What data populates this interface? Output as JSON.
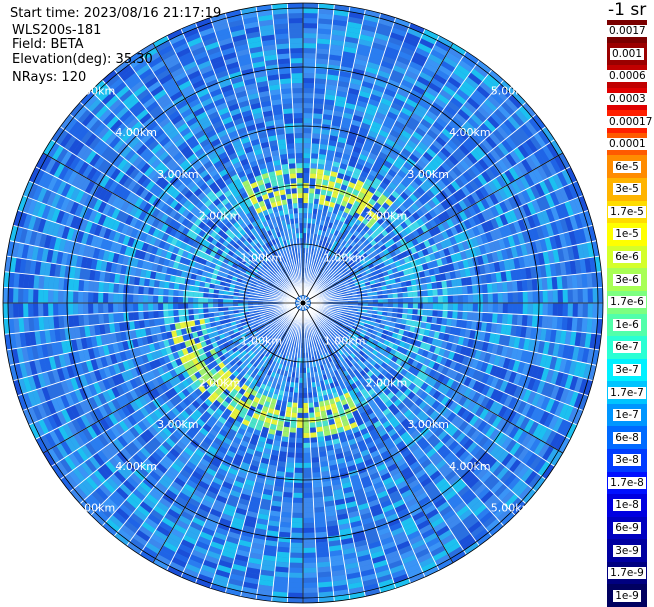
{
  "info": {
    "start_time": "Start time: 2023/08/16 21:17:19",
    "instrument": "WLS200s-181",
    "field": "Field: BETA",
    "elevation": "Elevation(deg): 35.30",
    "nrays": "NRays: 120"
  },
  "colorbar": {
    "unit": "-1 sr",
    "labels": [
      "0.0017",
      "0.001",
      "0.0006",
      "0.0003",
      "0.00017",
      "0.0001",
      "6e-5",
      "3e-5",
      "1.7e-5",
      "1e-5",
      "6e-6",
      "3e-6",
      "1.7e-6",
      "1e-6",
      "6e-7",
      "3e-7",
      "1.7e-7",
      "1e-7",
      "6e-8",
      "3e-8",
      "1.7e-8",
      "1e-8",
      "6e-9",
      "3e-9",
      "1.7e-9",
      "1e-9"
    ],
    "colors": [
      "#7a0000",
      "#9a0000",
      "#c00000",
      "#e00000",
      "#ff2000",
      "#ff5a00",
      "#ff8c00",
      "#ffb400",
      "#ffdc00",
      "#ffff00",
      "#d4ff2a",
      "#a8ff55",
      "#7dff80",
      "#52ffaa",
      "#2affd4",
      "#00f0ff",
      "#00c4ff",
      "#0096ff",
      "#006aff",
      "#003cff",
      "#0010ff",
      "#0000e0",
      "#0000c0",
      "#0000a0",
      "#000080",
      "#000060"
    ]
  },
  "ring_labels": [
    "1.00km",
    "2.00km",
    "3.00km",
    "4.00km",
    "5.00km"
  ],
  "rings": {
    "count": 5,
    "spacing_km": 1.0,
    "max_range_km": 5.2
  },
  "spokes_deg": 30,
  "rays": 120
}
